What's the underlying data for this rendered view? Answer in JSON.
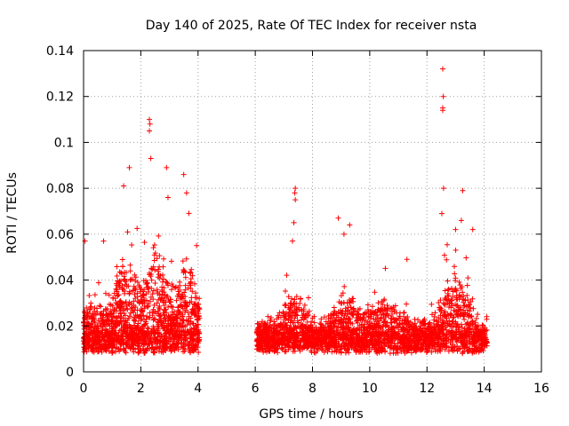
{
  "chart_data": {
    "type": "scatter",
    "title": "Day 140 of 2025, Rate Of TEC Index for receiver nsta",
    "xlabel": "GPS time / hours",
    "ylabel": "ROTI / TECUs",
    "xlim": [
      0,
      16
    ],
    "ylim": [
      0,
      0.14
    ],
    "x_ticks": [
      0,
      2,
      4,
      6,
      8,
      10,
      12,
      14,
      16
    ],
    "x_tick_labels": [
      "0",
      "2",
      "4",
      "6",
      "8",
      "10",
      "12",
      "14",
      "16"
    ],
    "y_ticks": [
      0,
      0.02,
      0.04,
      0.06,
      0.08,
      0.1,
      0.12,
      0.14
    ],
    "y_tick_labels": [
      "0",
      "0.02",
      "0.04",
      "0.06",
      "0.08",
      "0.1",
      "0.12",
      "0.14"
    ],
    "grid": true,
    "marker": "+",
    "marker_color": "#ff0000",
    "series": [
      {
        "name": "ROTI",
        "data_gap_hours": [
          4.05,
          6.05
        ],
        "notable_points": [
          {
            "x": 2.3,
            "y": 0.11
          },
          {
            "x": 2.32,
            "y": 0.108
          },
          {
            "x": 2.3,
            "y": 0.105
          },
          {
            "x": 2.35,
            "y": 0.093
          },
          {
            "x": 2.9,
            "y": 0.089
          },
          {
            "x": 1.6,
            "y": 0.089
          },
          {
            "x": 3.5,
            "y": 0.086
          },
          {
            "x": 1.4,
            "y": 0.081
          },
          {
            "x": 3.6,
            "y": 0.078
          },
          {
            "x": 2.95,
            "y": 0.076
          },
          {
            "x": 7.4,
            "y": 0.08
          },
          {
            "x": 7.38,
            "y": 0.078
          },
          {
            "x": 7.4,
            "y": 0.075
          },
          {
            "x": 7.35,
            "y": 0.065
          },
          {
            "x": 7.3,
            "y": 0.057
          },
          {
            "x": 8.9,
            "y": 0.067
          },
          {
            "x": 9.1,
            "y": 0.06
          },
          {
            "x": 9.3,
            "y": 0.064
          },
          {
            "x": 12.55,
            "y": 0.132
          },
          {
            "x": 12.57,
            "y": 0.12
          },
          {
            "x": 12.55,
            "y": 0.115
          },
          {
            "x": 12.55,
            "y": 0.114
          },
          {
            "x": 12.58,
            "y": 0.08
          },
          {
            "x": 12.52,
            "y": 0.069
          },
          {
            "x": 13.25,
            "y": 0.079
          },
          {
            "x": 13.2,
            "y": 0.066
          },
          {
            "x": 13.0,
            "y": 0.062
          },
          {
            "x": 13.6,
            "y": 0.062
          },
          {
            "x": 0.05,
            "y": 0.057
          },
          {
            "x": 0.7,
            "y": 0.057
          },
          {
            "x": 3.95,
            "y": 0.055
          },
          {
            "x": 11.3,
            "y": 0.049
          }
        ]
      }
    ]
  }
}
